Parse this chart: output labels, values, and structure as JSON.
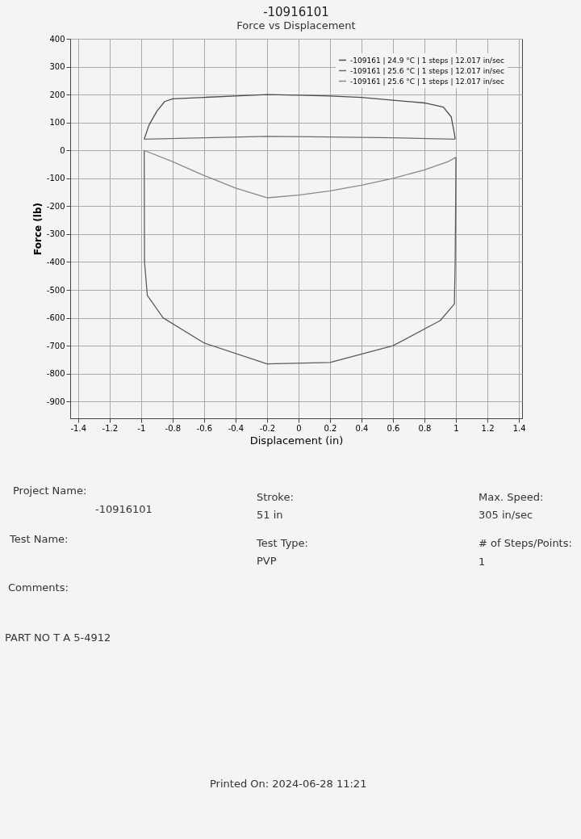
{
  "chart_data": {
    "type": "line",
    "title": "-10916101",
    "subtitle": "Force vs Displacement",
    "xlabel": "Displacement (in)",
    "ylabel": "Force (lb)",
    "xlim": [
      -1.45,
      1.42
    ],
    "xticks": [
      -1.4,
      -1.2,
      -1,
      -0.8,
      -0.6,
      -0.4,
      -0.2,
      0,
      0.2,
      0.4,
      0.6,
      0.8,
      1,
      1.2,
      1.4
    ],
    "ylim": [
      -960,
      400
    ],
    "yticks": [
      400,
      300,
      200,
      100,
      0,
      -100,
      -200,
      -300,
      -400,
      -500,
      -600,
      -700,
      -800,
      -900
    ],
    "grid": true,
    "legend": "top right",
    "marker": "none",
    "line_style": "solid",
    "series": [
      {
        "name": "-109161 | 24.9 °C | 1 steps | 12.017 in/sec",
        "color": "#4d4d4d",
        "x": [
          -0.98,
          -0.95,
          -0.9,
          -0.85,
          -0.8,
          -0.6,
          -0.4,
          -0.2,
          0,
          0.2,
          0.4,
          0.6,
          0.8,
          0.92,
          0.97,
          0.99,
          0.995
        ],
        "values": [
          40,
          90,
          140,
          175,
          185,
          190,
          195,
          200,
          198,
          195,
          190,
          180,
          170,
          155,
          120,
          60,
          40
        ]
      },
      {
        "name": "-109161 | 25.6 °C | 1 steps | 12.017 in/sec",
        "color": "#6e6e6e",
        "x": [
          -0.98,
          -0.6,
          -0.2,
          0.2,
          0.6,
          0.995
        ],
        "values": [
          40,
          45,
          50,
          48,
          45,
          40
        ]
      },
      {
        "name": "-109161 | 25.6 °C | 1 steps | 12.017 in/sec",
        "color": "#8a8a8a",
        "x": [
          -0.98,
          -0.8,
          -0.6,
          -0.4,
          -0.2,
          0,
          0.2,
          0.4,
          0.6,
          0.8,
          0.95,
          1.0
        ],
        "values": [
          0,
          -40,
          -90,
          -135,
          -170,
          -160,
          -145,
          -125,
          -100,
          -70,
          -40,
          -25
        ]
      },
      {
        "color": "#5c5c5c",
        "x": [
          -0.98,
          -0.979,
          -0.978,
          -0.96,
          -0.86,
          -0.6,
          -0.2,
          0.2,
          0.6,
          0.9,
          0.99,
          0.995,
          0.998,
          1.0
        ],
        "values": [
          0,
          -200,
          -400,
          -520,
          -600,
          -690,
          -765,
          -760,
          -700,
          -610,
          -550,
          -400,
          -200,
          -25
        ]
      }
    ],
    "annotations": [
      "Project Name:",
      "-10916101",
      "Test Name:",
      "Comments:",
      "PART NO T A 5-4912",
      "Stroke:",
      "51 in",
      "Test Type:",
      "PVP",
      "Max. Speed:",
      "305 in/sec",
      "# of Steps/Points:",
      "1",
      "Printed On: 2024-06-28 11:21"
    ]
  }
}
